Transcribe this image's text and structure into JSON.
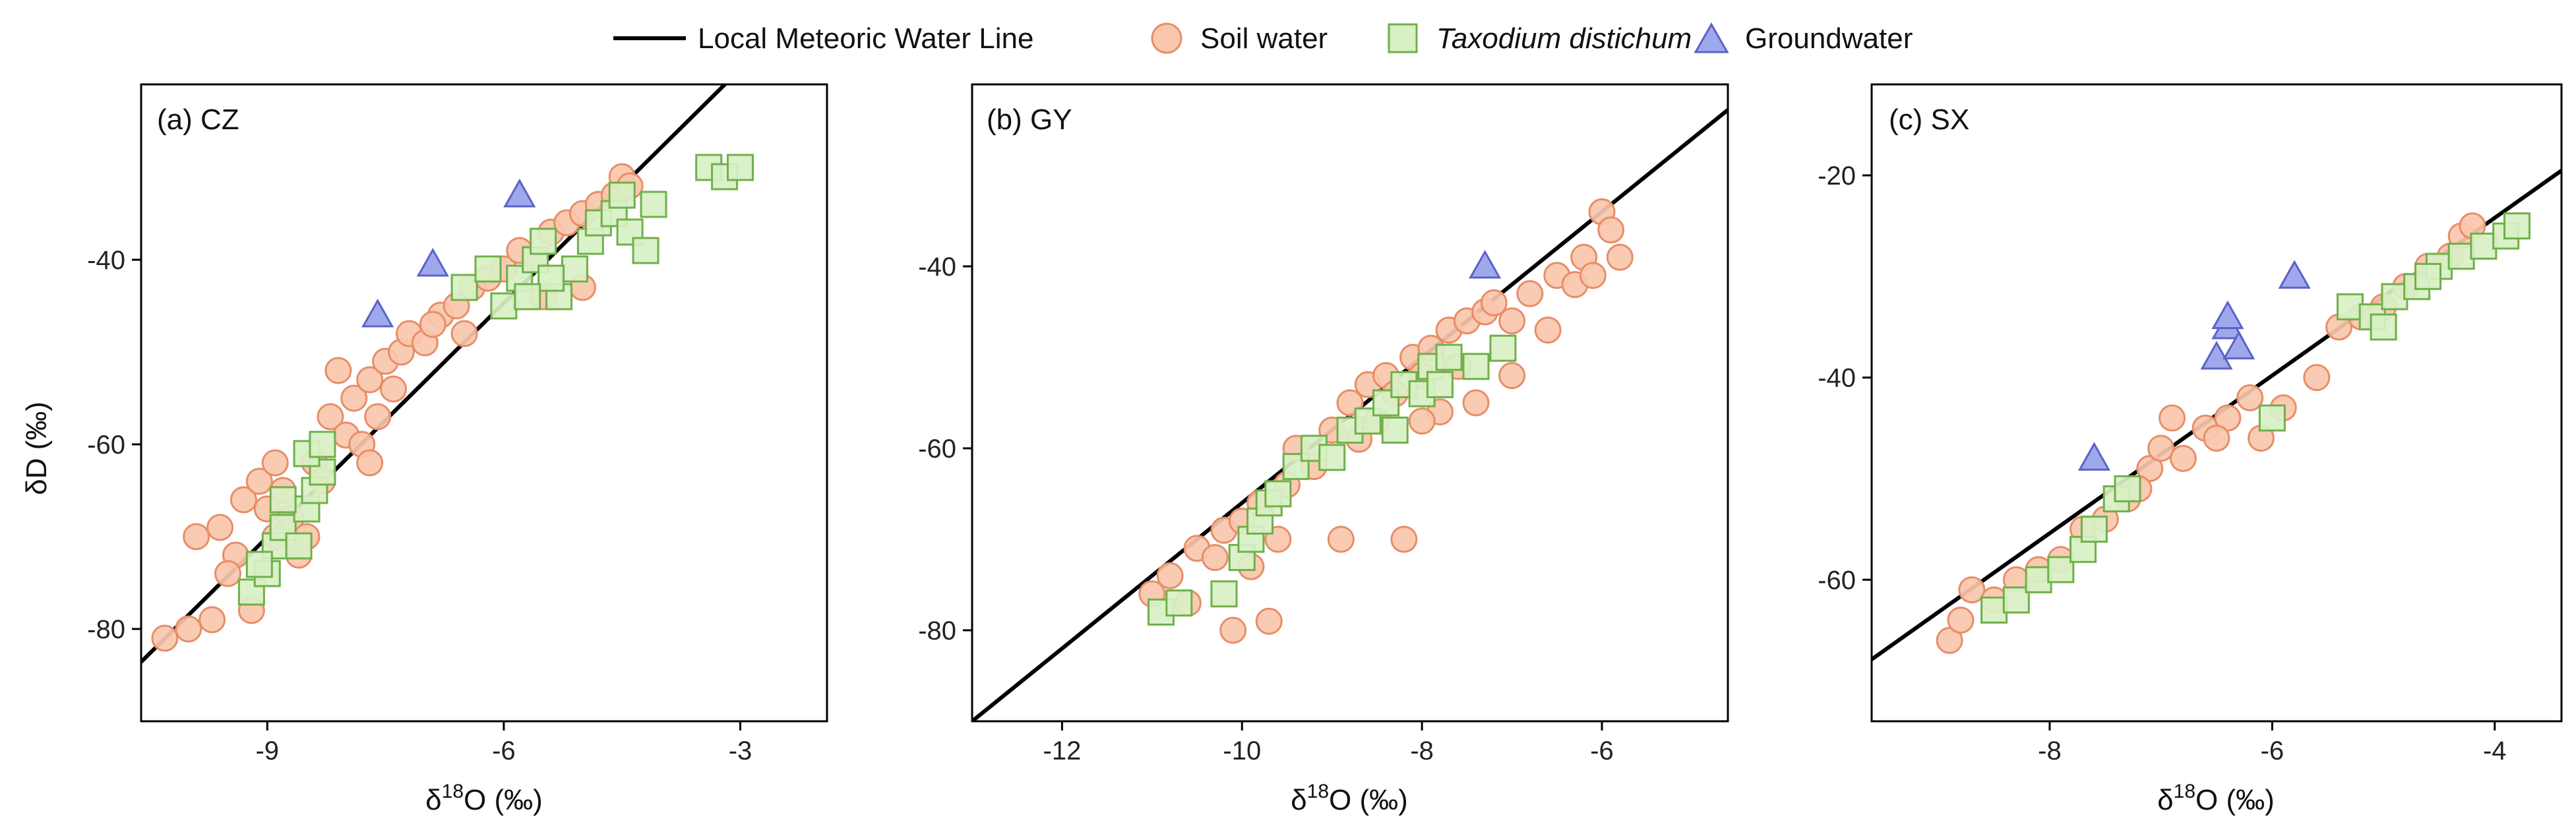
{
  "legend": {
    "lmwl": "Local Meteoric Water Line",
    "soil": "Soil water",
    "taxodium": "Taxodium distichum",
    "groundwater": "Groundwater"
  },
  "colors": {
    "soil_fill": "#f8c7ab",
    "soil_stroke": "#e88d68",
    "tax_fill": "#d8f0c4",
    "tax_stroke": "#6fb04a",
    "gw_fill": "#9fa8ec",
    "gw_stroke": "#5b62c8",
    "line": "#000000",
    "frame": "#000000"
  },
  "chart_data": [
    {
      "type": "scatter",
      "panel": "(a) CZ",
      "xlabel_prefix": "δ",
      "xlabel_sup": "18",
      "xlabel_suffix": "O (‰)",
      "ylabel": "δD (‰)",
      "xlim": [
        -10.6,
        -1.9
      ],
      "ylim": [
        -90,
        -21
      ],
      "xticks": [
        -9,
        -6,
        -3
      ],
      "yticks": [
        -80,
        -60,
        -40
      ],
      "lmwl": {
        "slope": 8.45,
        "intercept": 6.0
      },
      "series": [
        {
          "name": "Soil water",
          "points": [
            [
              -10.3,
              -81
            ],
            [
              -10.0,
              -80
            ],
            [
              -9.7,
              -79
            ],
            [
              -9.9,
              -70
            ],
            [
              -9.6,
              -69
            ],
            [
              -9.4,
              -72
            ],
            [
              -9.5,
              -74
            ],
            [
              -9.3,
              -66
            ],
            [
              -9.1,
              -64
            ],
            [
              -9.0,
              -67
            ],
            [
              -8.9,
              -62
            ],
            [
              -8.8,
              -65
            ],
            [
              -9.2,
              -78
            ],
            [
              -8.7,
              -68
            ],
            [
              -8.6,
              -72
            ],
            [
              -8.5,
              -70
            ],
            [
              -8.4,
              -62
            ],
            [
              -8.3,
              -64
            ],
            [
              -8.2,
              -57
            ],
            [
              -8.0,
              -59
            ],
            [
              -7.9,
              -55
            ],
            [
              -7.8,
              -60
            ],
            [
              -7.7,
              -53
            ],
            [
              -7.6,
              -57
            ],
            [
              -7.5,
              -51
            ],
            [
              -7.4,
              -54
            ],
            [
              -7.3,
              -50
            ],
            [
              -7.2,
              -48
            ],
            [
              -7.0,
              -49
            ],
            [
              -6.8,
              -46
            ],
            [
              -6.6,
              -45
            ],
            [
              -6.4,
              -43
            ],
            [
              -6.2,
              -42
            ],
            [
              -6.0,
              -41
            ],
            [
              -5.8,
              -39
            ],
            [
              -5.6,
              -40
            ],
            [
              -5.4,
              -37
            ],
            [
              -5.2,
              -36
            ],
            [
              -5.0,
              -35
            ],
            [
              -4.8,
              -34
            ],
            [
              -4.6,
              -33
            ],
            [
              -4.5,
              -31
            ],
            [
              -4.4,
              -32
            ],
            [
              -5.5,
              -44
            ],
            [
              -5.0,
              -43
            ],
            [
              -6.5,
              -48
            ],
            [
              -6.9,
              -47
            ],
            [
              -7.7,
              -62
            ],
            [
              -8.1,
              -52
            ],
            [
              -8.9,
              -70
            ]
          ]
        },
        {
          "name": "Taxodium distichum",
          "points": [
            [
              -9.2,
              -76
            ],
            [
              -9.0,
              -74
            ],
            [
              -8.9,
              -71
            ],
            [
              -8.8,
              -69
            ],
            [
              -8.6,
              -71
            ],
            [
              -8.5,
              -67
            ],
            [
              -8.4,
              -65
            ],
            [
              -8.3,
              -63
            ],
            [
              -8.5,
              -61
            ],
            [
              -8.3,
              -60
            ],
            [
              -8.8,
              -66
            ],
            [
              -9.1,
              -73
            ],
            [
              -6.5,
              -43
            ],
            [
              -6.2,
              -41
            ],
            [
              -6.0,
              -45
            ],
            [
              -5.8,
              -42
            ],
            [
              -5.6,
              -40
            ],
            [
              -5.5,
              -38
            ],
            [
              -5.3,
              -44
            ],
            [
              -5.1,
              -41
            ],
            [
              -4.9,
              -38
            ],
            [
              -4.8,
              -36
            ],
            [
              -4.6,
              -35
            ],
            [
              -4.5,
              -33
            ],
            [
              -4.4,
              -37
            ],
            [
              -4.2,
              -39
            ],
            [
              -4.1,
              -34
            ],
            [
              -3.4,
              -30
            ],
            [
              -3.2,
              -31
            ],
            [
              -3.0,
              -30
            ],
            [
              -5.4,
              -42
            ],
            [
              -5.7,
              -44
            ]
          ]
        },
        {
          "name": "Groundwater",
          "points": [
            [
              -7.6,
              -46
            ],
            [
              -6.9,
              -40.5
            ],
            [
              -5.8,
              -33
            ]
          ]
        }
      ]
    },
    {
      "type": "scatter",
      "panel": "(b) GY",
      "xlabel_prefix": "δ",
      "xlabel_sup": "18",
      "xlabel_suffix": "O (‰)",
      "ylabel": "",
      "xlim": [
        -13,
        -4.6
      ],
      "ylim": [
        -90,
        -20
      ],
      "xticks": [
        -12,
        -10,
        -8,
        -6
      ],
      "yticks": [
        -80,
        -60,
        -40
      ],
      "lmwl": {
        "slope": 8.0,
        "intercept": 14.0
      },
      "series": [
        {
          "name": "Soil water",
          "points": [
            [
              -11.0,
              -76
            ],
            [
              -10.8,
              -74
            ],
            [
              -10.6,
              -77
            ],
            [
              -10.5,
              -71
            ],
            [
              -10.3,
              -72
            ],
            [
              -10.2,
              -69
            ],
            [
              -10.0,
              -68
            ],
            [
              -9.9,
              -73
            ],
            [
              -9.8,
              -66
            ],
            [
              -9.7,
              -79
            ],
            [
              -9.6,
              -70
            ],
            [
              -9.5,
              -64
            ],
            [
              -9.4,
              -60
            ],
            [
              -9.2,
              -62
            ],
            [
              -9.0,
              -58
            ],
            [
              -8.9,
              -70
            ],
            [
              -8.8,
              -55
            ],
            [
              -8.7,
              -59
            ],
            [
              -8.6,
              -53
            ],
            [
              -8.5,
              -57
            ],
            [
              -8.4,
              -52
            ],
            [
              -8.3,
              -54
            ],
            [
              -8.2,
              -70
            ],
            [
              -8.1,
              -50
            ],
            [
              -8.0,
              -52
            ],
            [
              -7.9,
              -49
            ],
            [
              -7.8,
              -56
            ],
            [
              -7.7,
              -47
            ],
            [
              -7.6,
              -51
            ],
            [
              -7.5,
              -46
            ],
            [
              -7.4,
              -55
            ],
            [
              -7.3,
              -45
            ],
            [
              -7.2,
              -44
            ],
            [
              -7.0,
              -46
            ],
            [
              -6.8,
              -43
            ],
            [
              -6.6,
              -47
            ],
            [
              -6.5,
              -41
            ],
            [
              -6.3,
              -42
            ],
            [
              -6.2,
              -39
            ],
            [
              -6.1,
              -41
            ],
            [
              -6.0,
              -34
            ],
            [
              -5.9,
              -36
            ],
            [
              -5.8,
              -39
            ],
            [
              -10.1,
              -80
            ],
            [
              -8.0,
              -57
            ],
            [
              -7.0,
              -52
            ]
          ]
        },
        {
          "name": "Taxodium distichum",
          "points": [
            [
              -10.9,
              -78
            ],
            [
              -10.7,
              -77
            ],
            [
              -10.2,
              -76
            ],
            [
              -10.0,
              -72
            ],
            [
              -9.9,
              -70
            ],
            [
              -9.8,
              -68
            ],
            [
              -9.7,
              -66
            ],
            [
              -9.6,
              -65
            ],
            [
              -9.4,
              -62
            ],
            [
              -9.2,
              -60
            ],
            [
              -9.0,
              -61
            ],
            [
              -8.8,
              -58
            ],
            [
              -8.6,
              -57
            ],
            [
              -8.4,
              -55
            ],
            [
              -8.3,
              -58
            ],
            [
              -8.2,
              -53
            ],
            [
              -8.0,
              -54
            ],
            [
              -7.9,
              -51
            ],
            [
              -7.8,
              -53
            ],
            [
              -7.7,
              -50
            ],
            [
              -7.4,
              -51
            ],
            [
              -7.1,
              -49
            ]
          ]
        },
        {
          "name": "Groundwater",
          "points": [
            [
              -7.3,
              -40
            ]
          ]
        }
      ]
    },
    {
      "type": "scatter",
      "panel": "(c) SX",
      "xlabel_prefix": "δ",
      "xlabel_sup": "18",
      "xlabel_suffix": "O (‰)",
      "ylabel": "",
      "xlim": [
        -9.6,
        -3.4
      ],
      "ylim": [
        -74,
        -11
      ],
      "xticks": [
        -8,
        -6,
        -4
      ],
      "yticks": [
        -60,
        -40,
        -20
      ],
      "lmwl": {
        "slope": 7.8,
        "intercept": 7.0
      },
      "series": [
        {
          "name": "Soil water",
          "points": [
            [
              -8.9,
              -66
            ],
            [
              -8.8,
              -64
            ],
            [
              -8.7,
              -61
            ],
            [
              -8.5,
              -62
            ],
            [
              -8.3,
              -60
            ],
            [
              -8.1,
              -59
            ],
            [
              -7.9,
              -58
            ],
            [
              -7.7,
              -55
            ],
            [
              -7.5,
              -54
            ],
            [
              -7.3,
              -52
            ],
            [
              -7.1,
              -49
            ],
            [
              -7.0,
              -47
            ],
            [
              -6.9,
              -44
            ],
            [
              -6.8,
              -48
            ],
            [
              -6.6,
              -45
            ],
            [
              -6.4,
              -44
            ],
            [
              -6.2,
              -42
            ],
            [
              -6.1,
              -46
            ],
            [
              -5.9,
              -43
            ],
            [
              -5.6,
              -40
            ],
            [
              -5.4,
              -35
            ],
            [
              -5.2,
              -34
            ],
            [
              -5.0,
              -33
            ],
            [
              -4.8,
              -31
            ],
            [
              -4.6,
              -29
            ],
            [
              -4.4,
              -28
            ],
            [
              -4.3,
              -26
            ],
            [
              -4.2,
              -25
            ],
            [
              -7.2,
              -51
            ],
            [
              -6.5,
              -46
            ]
          ]
        },
        {
          "name": "Taxodium distichum",
          "points": [
            [
              -8.5,
              -63
            ],
            [
              -8.3,
              -62
            ],
            [
              -8.1,
              -60
            ],
            [
              -7.9,
              -59
            ],
            [
              -7.7,
              -57
            ],
            [
              -7.6,
              -55
            ],
            [
              -7.4,
              -52
            ],
            [
              -7.3,
              -51
            ],
            [
              -6.0,
              -44
            ],
            [
              -5.3,
              -33
            ],
            [
              -5.1,
              -34
            ],
            [
              -4.9,
              -32
            ],
            [
              -4.7,
              -31
            ],
            [
              -4.5,
              -29
            ],
            [
              -4.3,
              -28
            ],
            [
              -4.1,
              -27
            ],
            [
              -3.9,
              -26
            ],
            [
              -3.8,
              -25
            ],
            [
              -5.0,
              -35
            ],
            [
              -4.6,
              -30
            ]
          ]
        },
        {
          "name": "Groundwater",
          "points": [
            [
              -7.6,
              -48
            ],
            [
              -6.5,
              -38
            ],
            [
              -6.4,
              -35
            ],
            [
              -6.4,
              -34
            ],
            [
              -6.3,
              -37
            ],
            [
              -5.8,
              -30
            ]
          ]
        }
      ]
    }
  ]
}
